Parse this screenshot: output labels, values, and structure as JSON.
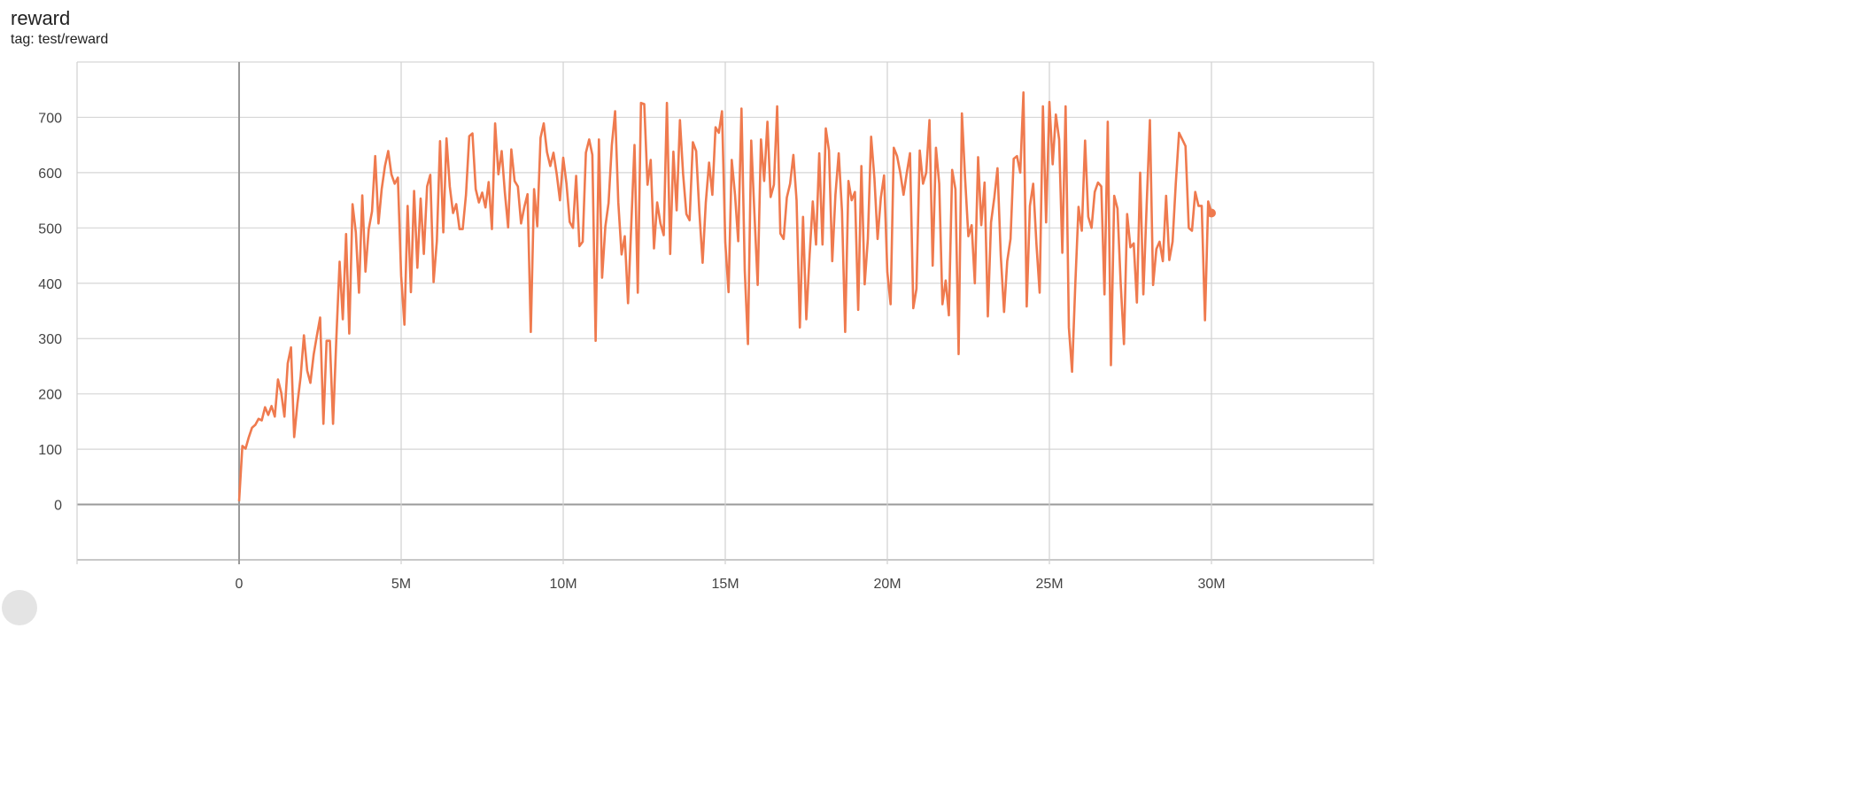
{
  "header": {
    "title": "reward",
    "subtitle": "tag: test/reward"
  },
  "chart_data": {
    "type": "line",
    "title": "reward",
    "subtitle": "tag: test/reward",
    "xlabel": "",
    "ylabel": "",
    "xlim": [
      -5000000,
      35000000
    ],
    "ylim": [
      -100,
      800
    ],
    "x_ticks": [
      0,
      5000000,
      10000000,
      15000000,
      20000000,
      25000000,
      30000000
    ],
    "x_tick_labels": [
      "0",
      "5M",
      "10M",
      "15M",
      "20M",
      "25M",
      "30M"
    ],
    "y_ticks": [
      0,
      100,
      200,
      300,
      400,
      500,
      600,
      700
    ],
    "y_tick_labels": [
      "0",
      "100",
      "200",
      "300",
      "400",
      "500",
      "600",
      "700"
    ],
    "grid": true,
    "legend": "none",
    "color": "#ef7a4e",
    "x_unit": "M",
    "series": [
      {
        "points": [
          [
            0.0,
            6
          ],
          [
            0.1,
            106
          ],
          [
            0.2,
            101
          ],
          [
            0.3,
            122
          ],
          [
            0.4,
            139
          ],
          [
            0.5,
            144
          ],
          [
            0.6,
            155
          ],
          [
            0.7,
            152
          ],
          [
            0.8,
            176
          ],
          [
            0.9,
            162
          ],
          [
            1.0,
            178
          ],
          [
            1.1,
            159
          ],
          [
            1.2,
            226
          ],
          [
            1.3,
            202
          ],
          [
            1.4,
            159
          ],
          [
            1.5,
            255
          ],
          [
            1.6,
            284
          ],
          [
            1.7,
            122
          ],
          [
            1.8,
            183
          ],
          [
            1.9,
            231
          ],
          [
            2.0,
            306
          ],
          [
            2.1,
            242
          ],
          [
            2.2,
            220
          ],
          [
            2.3,
            271
          ],
          [
            2.4,
            305
          ],
          [
            2.5,
            338
          ],
          [
            2.6,
            146
          ],
          [
            2.7,
            296
          ],
          [
            2.8,
            296
          ],
          [
            2.9,
            146
          ],
          [
            3.0,
            300
          ],
          [
            3.1,
            439
          ],
          [
            3.2,
            335
          ],
          [
            3.3,
            489
          ],
          [
            3.4,
            309
          ],
          [
            3.5,
            543
          ],
          [
            3.6,
            492
          ],
          [
            3.7,
            383
          ],
          [
            3.8,
            559
          ],
          [
            3.9,
            421
          ],
          [
            4.0,
            498
          ],
          [
            4.1,
            530
          ],
          [
            4.2,
            630
          ],
          [
            4.3,
            508
          ],
          [
            4.4,
            570
          ],
          [
            4.5,
            612
          ],
          [
            4.6,
            639
          ],
          [
            4.7,
            597
          ],
          [
            4.8,
            580
          ],
          [
            4.9,
            591
          ],
          [
            5.0,
            413
          ],
          [
            5.1,
            325
          ],
          [
            5.2,
            540
          ],
          [
            5.3,
            384
          ],
          [
            5.4,
            567
          ],
          [
            5.5,
            428
          ],
          [
            5.6,
            553
          ],
          [
            5.7,
            453
          ],
          [
            5.8,
            575
          ],
          [
            5.9,
            596
          ],
          [
            6.0,
            402
          ],
          [
            6.1,
            476
          ],
          [
            6.2,
            657
          ],
          [
            6.3,
            492
          ],
          [
            6.4,
            662
          ],
          [
            6.5,
            575
          ],
          [
            6.6,
            527
          ],
          [
            6.7,
            543
          ],
          [
            6.8,
            498
          ],
          [
            6.9,
            498
          ],
          [
            7.0,
            560
          ],
          [
            7.1,
            666
          ],
          [
            7.2,
            671
          ],
          [
            7.3,
            570
          ],
          [
            7.4,
            546
          ],
          [
            7.5,
            564
          ],
          [
            7.6,
            537
          ],
          [
            7.7,
            583
          ],
          [
            7.8,
            498
          ],
          [
            7.9,
            689
          ],
          [
            8.0,
            597
          ],
          [
            8.1,
            639
          ],
          [
            8.2,
            564
          ],
          [
            8.3,
            501
          ],
          [
            8.4,
            642
          ],
          [
            8.5,
            585
          ],
          [
            8.6,
            575
          ],
          [
            8.7,
            508
          ],
          [
            8.8,
            538
          ],
          [
            8.9,
            561
          ],
          [
            9.0,
            312
          ],
          [
            9.1,
            570
          ],
          [
            9.2,
            503
          ],
          [
            9.3,
            663
          ],
          [
            9.4,
            689
          ],
          [
            9.5,
            637
          ],
          [
            9.6,
            612
          ],
          [
            9.7,
            636
          ],
          [
            9.8,
            597
          ],
          [
            9.9,
            550
          ],
          [
            10.0,
            627
          ],
          [
            10.1,
            580
          ],
          [
            10.2,
            511
          ],
          [
            10.3,
            500
          ],
          [
            10.4,
            594
          ],
          [
            10.5,
            467
          ],
          [
            10.6,
            475
          ],
          [
            10.7,
            636
          ],
          [
            10.8,
            660
          ],
          [
            10.9,
            632
          ],
          [
            11.0,
            296
          ],
          [
            11.1,
            660
          ],
          [
            11.2,
            410
          ],
          [
            11.3,
            503
          ],
          [
            11.4,
            545
          ],
          [
            11.5,
            650
          ],
          [
            11.6,
            711
          ],
          [
            11.7,
            546
          ],
          [
            11.8,
            452
          ],
          [
            11.9,
            485
          ],
          [
            12.0,
            364
          ],
          [
            12.1,
            508
          ],
          [
            12.2,
            650
          ],
          [
            12.3,
            383
          ],
          [
            12.4,
            726
          ],
          [
            12.5,
            724
          ],
          [
            12.6,
            578
          ],
          [
            12.7,
            623
          ],
          [
            12.8,
            463
          ],
          [
            12.9,
            546
          ],
          [
            13.0,
            508
          ],
          [
            13.1,
            487
          ],
          [
            13.2,
            726
          ],
          [
            13.3,
            453
          ],
          [
            13.4,
            638
          ],
          [
            13.5,
            532
          ],
          [
            13.6,
            695
          ],
          [
            13.7,
            597
          ],
          [
            13.8,
            525
          ],
          [
            13.9,
            514
          ],
          [
            14.0,
            655
          ],
          [
            14.1,
            639
          ],
          [
            14.2,
            530
          ],
          [
            14.3,
            437
          ],
          [
            14.4,
            546
          ],
          [
            14.5,
            618
          ],
          [
            14.6,
            560
          ],
          [
            14.7,
            682
          ],
          [
            14.8,
            672
          ],
          [
            14.9,
            711
          ],
          [
            15.0,
            474
          ],
          [
            15.1,
            384
          ],
          [
            15.2,
            623
          ],
          [
            15.3,
            560
          ],
          [
            15.4,
            476
          ],
          [
            15.5,
            716
          ],
          [
            15.6,
            423
          ],
          [
            15.7,
            290
          ],
          [
            15.8,
            658
          ],
          [
            15.9,
            527
          ],
          [
            16.0,
            397
          ],
          [
            16.1,
            660
          ],
          [
            16.2,
            585
          ],
          [
            16.3,
            692
          ],
          [
            16.4,
            556
          ],
          [
            16.5,
            578
          ],
          [
            16.6,
            720
          ],
          [
            16.7,
            490
          ],
          [
            16.8,
            480
          ],
          [
            16.9,
            555
          ],
          [
            17.0,
            580
          ],
          [
            17.1,
            632
          ],
          [
            17.2,
            550
          ],
          [
            17.3,
            320
          ],
          [
            17.4,
            520
          ],
          [
            17.5,
            335
          ],
          [
            17.6,
            450
          ],
          [
            17.7,
            548
          ],
          [
            17.8,
            470
          ],
          [
            17.9,
            635
          ],
          [
            18.0,
            470
          ],
          [
            18.1,
            680
          ],
          [
            18.2,
            640
          ],
          [
            18.3,
            440
          ],
          [
            18.4,
            560
          ],
          [
            18.5,
            635
          ],
          [
            18.6,
            530
          ],
          [
            18.7,
            312
          ],
          [
            18.8,
            585
          ],
          [
            18.9,
            550
          ],
          [
            19.0,
            565
          ],
          [
            19.1,
            352
          ],
          [
            19.2,
            612
          ],
          [
            19.3,
            398
          ],
          [
            19.4,
            480
          ],
          [
            19.5,
            665
          ],
          [
            19.6,
            590
          ],
          [
            19.7,
            480
          ],
          [
            19.8,
            555
          ],
          [
            19.9,
            595
          ],
          [
            20.0,
            420
          ],
          [
            20.1,
            362
          ],
          [
            20.2,
            645
          ],
          [
            20.3,
            630
          ],
          [
            20.4,
            600
          ],
          [
            20.5,
            560
          ],
          [
            20.6,
            600
          ],
          [
            20.7,
            635
          ],
          [
            20.8,
            355
          ],
          [
            20.9,
            390
          ],
          [
            21.0,
            640
          ],
          [
            21.1,
            580
          ],
          [
            21.2,
            600
          ],
          [
            21.3,
            695
          ],
          [
            21.4,
            432
          ],
          [
            21.5,
            645
          ],
          [
            21.6,
            580
          ],
          [
            21.7,
            362
          ],
          [
            21.8,
            405
          ],
          [
            21.9,
            342
          ],
          [
            22.0,
            605
          ],
          [
            22.1,
            570
          ],
          [
            22.2,
            272
          ],
          [
            22.3,
            707
          ],
          [
            22.4,
            590
          ],
          [
            22.5,
            485
          ],
          [
            22.6,
            505
          ],
          [
            22.7,
            400
          ],
          [
            22.8,
            628
          ],
          [
            22.9,
            505
          ],
          [
            23.0,
            582
          ],
          [
            23.1,
            340
          ],
          [
            23.2,
            510
          ],
          [
            23.3,
            555
          ],
          [
            23.4,
            608
          ],
          [
            23.5,
            450
          ],
          [
            23.6,
            348
          ],
          [
            23.7,
            440
          ],
          [
            23.8,
            480
          ],
          [
            23.9,
            625
          ],
          [
            24.0,
            630
          ],
          [
            24.1,
            600
          ],
          [
            24.2,
            745
          ],
          [
            24.3,
            358
          ],
          [
            24.4,
            540
          ],
          [
            24.5,
            580
          ],
          [
            24.6,
            470
          ],
          [
            24.7,
            383
          ],
          [
            24.8,
            720
          ],
          [
            24.9,
            510
          ],
          [
            25.0,
            728
          ],
          [
            25.1,
            615
          ],
          [
            25.2,
            705
          ],
          [
            25.3,
            660
          ],
          [
            25.4,
            455
          ],
          [
            25.5,
            720
          ],
          [
            25.6,
            320
          ],
          [
            25.7,
            240
          ],
          [
            25.8,
            400
          ],
          [
            25.9,
            538
          ],
          [
            26.0,
            495
          ],
          [
            26.1,
            658
          ],
          [
            26.2,
            520
          ],
          [
            26.3,
            500
          ],
          [
            26.4,
            565
          ],
          [
            26.5,
            582
          ],
          [
            26.6,
            575
          ],
          [
            26.7,
            380
          ],
          [
            26.8,
            692
          ],
          [
            26.9,
            252
          ],
          [
            27.0,
            558
          ],
          [
            27.1,
            535
          ],
          [
            27.2,
            400
          ],
          [
            27.3,
            290
          ],
          [
            27.4,
            525
          ],
          [
            27.5,
            465
          ],
          [
            27.6,
            472
          ],
          [
            27.7,
            365
          ],
          [
            27.8,
            600
          ],
          [
            27.9,
            380
          ],
          [
            28.0,
            540
          ],
          [
            28.1,
            695
          ],
          [
            28.2,
            397
          ],
          [
            28.3,
            462
          ],
          [
            28.4,
            475
          ],
          [
            28.5,
            440
          ],
          [
            28.6,
            558
          ],
          [
            28.7,
            442
          ],
          [
            28.8,
            475
          ],
          [
            28.9,
            580
          ],
          [
            29.0,
            672
          ],
          [
            29.1,
            660
          ],
          [
            29.2,
            648
          ],
          [
            29.3,
            500
          ],
          [
            29.4,
            495
          ],
          [
            29.5,
            565
          ],
          [
            29.6,
            540
          ],
          [
            29.7,
            540
          ],
          [
            29.8,
            333
          ],
          [
            29.9,
            548
          ],
          [
            30.0,
            527
          ]
        ]
      }
    ]
  }
}
